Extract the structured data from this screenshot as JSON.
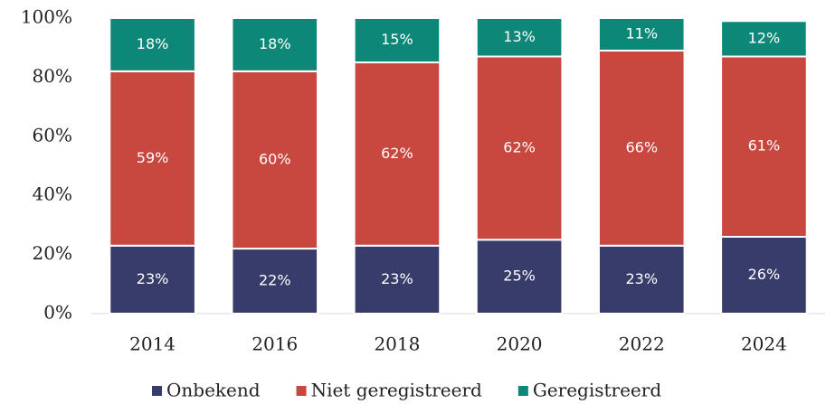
{
  "chart_data": {
    "type": "stacked_bar",
    "categories": [
      "2014",
      "2016",
      "2018",
      "2020",
      "2022",
      "2024"
    ],
    "series": [
      {
        "name": "Onbekend",
        "color": "#383c6b",
        "values": [
          23,
          22,
          23,
          25,
          23,
          26
        ],
        "value_labels": [
          "23%",
          "22%",
          "23%",
          "25%",
          "23%",
          "26%"
        ]
      },
      {
        "name": "Niet geregistreerd",
        "color": "#c8483f",
        "values": [
          59,
          60,
          62,
          62,
          66,
          61
        ],
        "value_labels": [
          "59%",
          "60%",
          "62%",
          "62%",
          "66%",
          "61%"
        ]
      },
      {
        "name": "Geregistreerd",
        "color": "#0d8878",
        "values": [
          18,
          18,
          15,
          13,
          11,
          12
        ],
        "value_labels": [
          "18%",
          "18%",
          "15%",
          "13%",
          "11%",
          "12%"
        ]
      }
    ],
    "ylim": [
      0,
      100
    ],
    "yticks": [
      {
        "value": 0,
        "label": "0%"
      },
      {
        "value": 20,
        "label": "20%"
      },
      {
        "value": 40,
        "label": "40%"
      },
      {
        "value": 60,
        "label": "60%"
      },
      {
        "value": 80,
        "label": "80%"
      },
      {
        "value": 100,
        "label": "100%"
      }
    ],
    "grid": false,
    "legend": "bottom"
  }
}
